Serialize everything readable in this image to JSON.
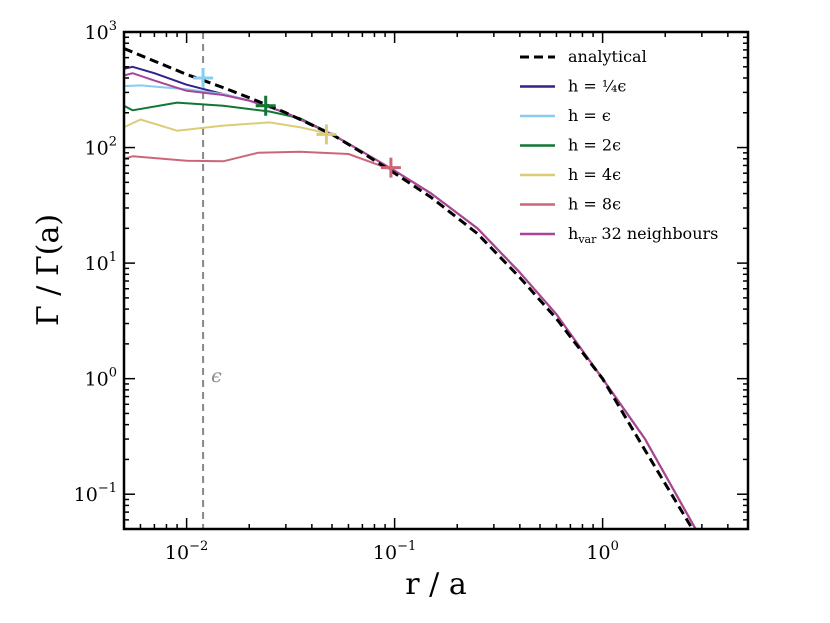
{
  "chart_data": {
    "type": "line",
    "xscale": "log",
    "yscale": "log",
    "xlim": [
      0.005,
      5.0
    ],
    "ylim": [
      0.05,
      1000
    ],
    "xlabel": "r / a",
    "ylabel": "Γ / Γ(a)",
    "x_ticks": [
      {
        "value": 0.01,
        "base": "10",
        "exp": "−2"
      },
      {
        "value": 0.1,
        "base": "10",
        "exp": "−1"
      },
      {
        "value": 1.0,
        "base": "10",
        "exp": "0"
      }
    ],
    "y_ticks": [
      {
        "value": 0.1,
        "base": "10",
        "exp": "−1"
      },
      {
        "value": 1,
        "base": "10",
        "exp": "0"
      },
      {
        "value": 10,
        "base": "10",
        "exp": "1"
      },
      {
        "value": 100,
        "base": "10",
        "exp": "2"
      },
      {
        "value": 1000,
        "base": "10",
        "exp": "3"
      }
    ],
    "legend_position": "top-right",
    "vline": {
      "x": 0.012,
      "label": "ϵ",
      "label_y": 1.05,
      "color": "#888888"
    },
    "series": [
      {
        "name": "analytical",
        "label": "analytical",
        "color": "#000000",
        "dashed": true,
        "x": [
          0.005,
          0.007,
          0.01,
          0.015,
          0.02,
          0.03,
          0.05,
          0.07,
          0.1,
          0.15,
          0.25,
          0.4,
          0.6,
          1.0,
          1.6,
          2.8
        ],
        "y": [
          720,
          560,
          430,
          330,
          270,
          200,
          130,
          90,
          60,
          37,
          18,
          7.5,
          3.3,
          1.0,
          0.24,
          0.045
        ],
        "marker": null
      },
      {
        "name": "h-quarter-eps",
        "label": "h = ¼ϵ",
        "color": "#332288",
        "dashed": false,
        "x": [
          0.005,
          0.0055,
          0.007,
          0.01,
          0.015,
          0.02,
          0.03,
          0.05,
          0.07,
          0.1,
          0.15,
          0.25,
          0.4,
          0.6,
          1.0,
          1.6,
          2.8
        ],
        "y": [
          480,
          500,
          440,
          350,
          290,
          255,
          200,
          130,
          92,
          63,
          40,
          20,
          8.3,
          3.6,
          1.0,
          0.3,
          0.05
        ],
        "marker": {
          "x": 0.012,
          "y": 400,
          "color": "#88CCEE"
        }
      },
      {
        "name": "h-eps",
        "label": "h = ϵ",
        "color": "#88CCEE",
        "dashed": false,
        "x": [
          0.005,
          0.006,
          0.008,
          0.01,
          0.015,
          0.02,
          0.03,
          0.05,
          0.07,
          0.1,
          0.15,
          0.25,
          0.4,
          0.6,
          1.0,
          1.6,
          2.8
        ],
        "y": [
          340,
          345,
          330,
          320,
          290,
          255,
          200,
          130,
          92,
          63,
          40,
          20,
          8.3,
          3.6,
          1.0,
          0.3,
          0.05
        ],
        "marker": null
      },
      {
        "name": "h-2eps",
        "label": "h = 2ϵ",
        "color": "#117733",
        "dashed": false,
        "x": [
          0.005,
          0.0055,
          0.009,
          0.015,
          0.025,
          0.035,
          0.05,
          0.07,
          0.1,
          0.15,
          0.25,
          0.4,
          0.6,
          1.0,
          1.6,
          2.8
        ],
        "y": [
          230,
          210,
          245,
          230,
          205,
          180,
          130,
          92,
          63,
          40,
          20,
          8.3,
          3.6,
          1.0,
          0.3,
          0.05
        ],
        "marker": {
          "x": 0.024,
          "y": 230,
          "color": "#117733"
        }
      },
      {
        "name": "h-4eps",
        "label": "h = 4ϵ",
        "color": "#DDCC77",
        "dashed": false,
        "x": [
          0.005,
          0.006,
          0.009,
          0.015,
          0.025,
          0.035,
          0.05,
          0.07,
          0.1,
          0.15,
          0.25,
          0.4,
          0.6,
          1.0,
          1.6,
          2.8
        ],
        "y": [
          150,
          175,
          140,
          155,
          165,
          150,
          130,
          92,
          63,
          40,
          20,
          8.3,
          3.6,
          1.0,
          0.3,
          0.05
        ],
        "marker": {
          "x": 0.047,
          "y": 130,
          "color": "#DDCC77"
        }
      },
      {
        "name": "h-8eps",
        "label": "h = 8ϵ",
        "color": "#CC6677",
        "dashed": false,
        "x": [
          0.005,
          0.0055,
          0.01,
          0.015,
          0.022,
          0.035,
          0.06,
          0.1,
          0.15,
          0.25,
          0.4,
          0.6,
          1.0,
          1.6,
          2.8
        ],
        "y": [
          80,
          84,
          77,
          76,
          90,
          92,
          88,
          63,
          40,
          20,
          8.3,
          3.6,
          1.0,
          0.3,
          0.05
        ],
        "marker": {
          "x": 0.096,
          "y": 67,
          "color": "#CC6677"
        }
      },
      {
        "name": "h-var",
        "label": "h",
        "label_sub": "var",
        "label_tail": " 32 neighbours",
        "color": "#AA4499",
        "dashed": false,
        "x": [
          0.005,
          0.0055,
          0.007,
          0.01,
          0.015,
          0.02,
          0.03,
          0.05,
          0.07,
          0.1,
          0.15,
          0.25,
          0.4,
          0.6,
          1.0,
          1.6,
          2.8
        ],
        "y": [
          420,
          440,
          380,
          310,
          285,
          255,
          200,
          130,
          92,
          63,
          40,
          20,
          8.3,
          3.6,
          1.0,
          0.3,
          0.05
        ],
        "marker": null
      }
    ]
  }
}
